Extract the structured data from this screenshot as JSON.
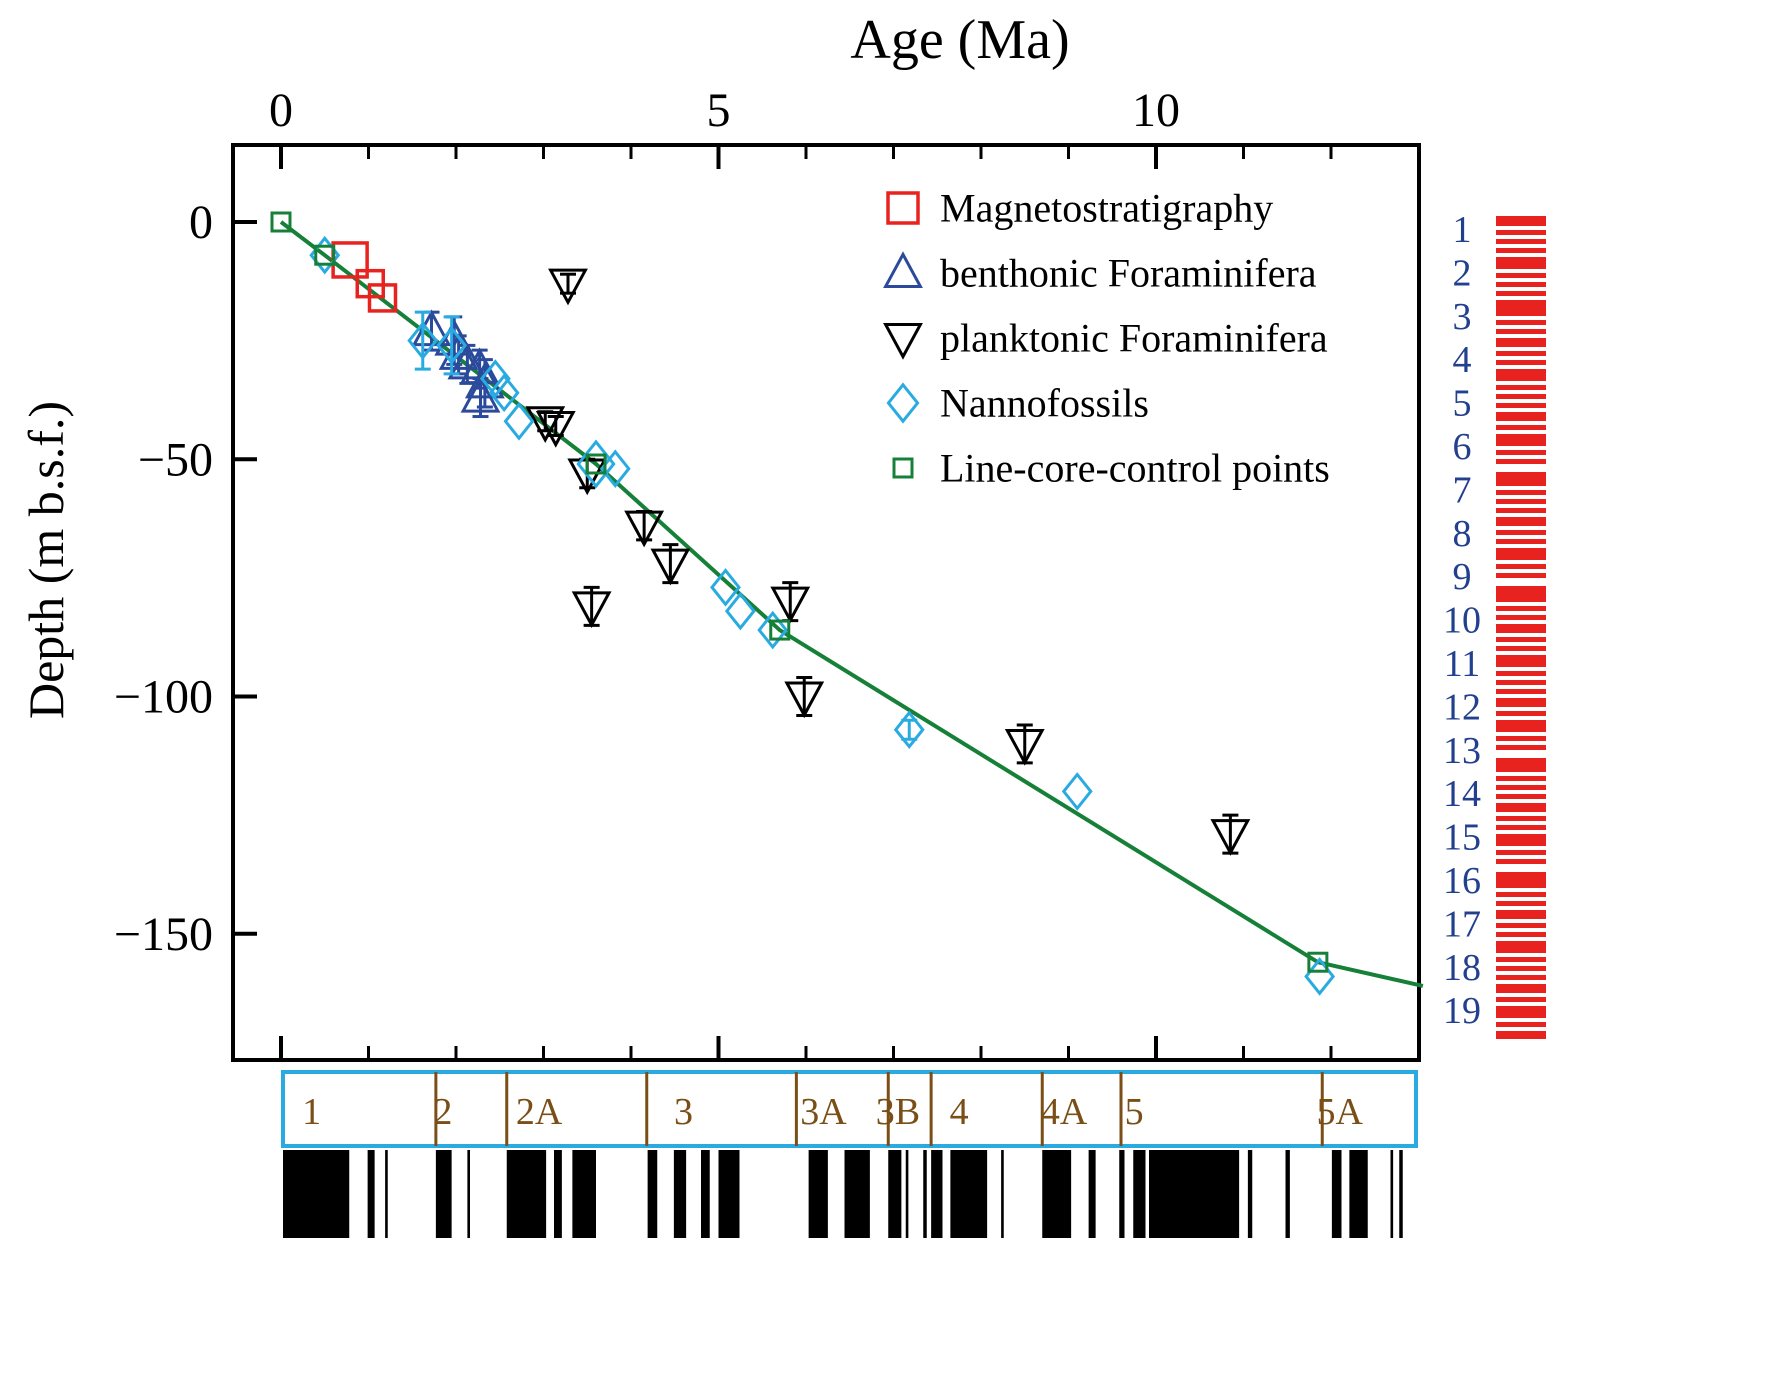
{
  "figure": {
    "title": "Age (Ma)",
    "ylabel": "Depth (m b.s.f.)"
  },
  "chart_data": {
    "type": "scatter",
    "xlabel": "Age (Ma)",
    "ylabel": "Depth (m b.s.f.)",
    "xlim": [
      0,
      13
    ],
    "ylim": [
      -176,
      16
    ],
    "x_major_ticks": [
      0,
      5,
      10
    ],
    "x_minor_ticks": [
      1,
      2,
      3,
      4,
      6,
      7,
      8,
      9,
      11,
      12
    ],
    "y_major_ticks": [
      0,
      -50,
      -100,
      -150
    ],
    "grid": false,
    "legend_position": "top-right-inside",
    "series": [
      {
        "name": "Magnetostratigraphy",
        "marker": "square",
        "color": "#e8231f",
        "stroke": 3.5,
        "size": 26,
        "points": [
          {
            "x": 0.79,
            "y": -8,
            "s": 34
          },
          {
            "x": 1.02,
            "y": -13
          },
          {
            "x": 1.16,
            "y": -16
          }
        ]
      },
      {
        "name": "benthonic Foraminifera",
        "marker": "triangle-up",
        "color": "#2b4a9c",
        "stroke": 3,
        "size": 30,
        "points": [
          {
            "x": 1.72,
            "y": -23,
            "e": 4
          },
          {
            "x": 1.98,
            "y": -25,
            "e": 5
          },
          {
            "x": 2.03,
            "y": -28,
            "e": 4
          },
          {
            "x": 2.13,
            "y": -30,
            "e": 4
          },
          {
            "x": 2.27,
            "y": -31,
            "e": 4
          },
          {
            "x": 2.33,
            "y": -34,
            "e": 5
          },
          {
            "x": 2.28,
            "y": -37,
            "e": 4
          }
        ]
      },
      {
        "name": "planktonic Foraminifera",
        "marker": "triangle-down",
        "color": "#000000",
        "stroke": 3,
        "size": 30,
        "points": [
          {
            "x": 3.28,
            "y": -13,
            "e": 2
          },
          {
            "x": 3.02,
            "y": -42,
            "e": 2
          },
          {
            "x": 3.14,
            "y": -43,
            "e": 2
          },
          {
            "x": 3.5,
            "y": -53,
            "e": 3
          },
          {
            "x": 4.15,
            "y": -64,
            "e": 3
          },
          {
            "x": 4.45,
            "y": -72,
            "e": 4
          },
          {
            "x": 3.55,
            "y": -81,
            "e": 4
          },
          {
            "x": 5.82,
            "y": -80,
            "e": 4
          },
          {
            "x": 5.98,
            "y": -100,
            "e": 4
          },
          {
            "x": 8.5,
            "y": -110,
            "e": 4
          },
          {
            "x": 10.85,
            "y": -129,
            "e": 4
          }
        ]
      },
      {
        "name": "Nannofossils",
        "marker": "diamond",
        "color": "#29abe2",
        "stroke": 3,
        "size": 26,
        "points": [
          {
            "x": 0.5,
            "y": -7
          },
          {
            "x": 1.62,
            "y": -25,
            "e": 6
          },
          {
            "x": 1.95,
            "y": -26,
            "e": 6
          },
          {
            "x": 2.45,
            "y": -33
          },
          {
            "x": 2.55,
            "y": -36
          },
          {
            "x": 2.72,
            "y": -42
          },
          {
            "x": 3.6,
            "y": -51,
            "s": 34
          },
          {
            "x": 3.82,
            "y": -52
          },
          {
            "x": 5.08,
            "y": -77
          },
          {
            "x": 5.25,
            "y": -82
          },
          {
            "x": 5.62,
            "y": -86
          },
          {
            "x": 7.18,
            "y": -107,
            "e": 2
          },
          {
            "x": 9.1,
            "y": -120
          },
          {
            "x": 11.87,
            "y": -159
          }
        ]
      },
      {
        "name": "Line-core-control points",
        "marker": "square",
        "color": "#168039",
        "stroke": 3,
        "size": 18,
        "points": [
          {
            "x": 0,
            "y": 0
          },
          {
            "x": 0.5,
            "y": -7
          },
          {
            "x": 3.6,
            "y": -51
          },
          {
            "x": 5.7,
            "y": -86
          },
          {
            "x": 11.85,
            "y": -156
          }
        ]
      }
    ],
    "line": {
      "name": "age-depth-model-line",
      "color": "#168039",
      "points": [
        [
          0,
          0
        ],
        [
          0.5,
          -7
        ],
        [
          3.6,
          -51
        ],
        [
          5.7,
          -86
        ],
        [
          11.85,
          -156
        ],
        [
          13.05,
          -161
        ]
      ]
    }
  },
  "legend": {
    "items": [
      {
        "label": "Magnetostratigraphy"
      },
      {
        "label": "benthonic Foraminifera"
      },
      {
        "label": "planktonic Foraminifera"
      },
      {
        "label": "Nannofossils"
      },
      {
        "label": "Line-core-control points"
      }
    ]
  },
  "core_log": {
    "numbers": [
      "1",
      "2",
      "3",
      "4",
      "5",
      "6",
      "7",
      "8",
      "9",
      "10",
      "11",
      "12",
      "13",
      "14",
      "15",
      "16",
      "17",
      "18",
      "19"
    ],
    "number_color": "#23408f",
    "stripe_color": "#e8231f",
    "stripes": [
      [
        2,
        10
      ],
      [
        16,
        5
      ],
      [
        25,
        5
      ],
      [
        34,
        5
      ],
      [
        43,
        12
      ],
      [
        59,
        5
      ],
      [
        68,
        5
      ],
      [
        77,
        5
      ],
      [
        86,
        16
      ],
      [
        106,
        5
      ],
      [
        115,
        5
      ],
      [
        124,
        9
      ],
      [
        137,
        5
      ],
      [
        146,
        5
      ],
      [
        155,
        12
      ],
      [
        171,
        5
      ],
      [
        180,
        5
      ],
      [
        189,
        5
      ],
      [
        198,
        9
      ],
      [
        211,
        5
      ],
      [
        220,
        12
      ],
      [
        236,
        5
      ],
      [
        245,
        5
      ],
      [
        258,
        14
      ],
      [
        276,
        5
      ],
      [
        285,
        5
      ],
      [
        294,
        5
      ],
      [
        303,
        9
      ],
      [
        316,
        5
      ],
      [
        325,
        5
      ],
      [
        334,
        12
      ],
      [
        350,
        5
      ],
      [
        359,
        5
      ],
      [
        372,
        16
      ],
      [
        392,
        5
      ],
      [
        401,
        5
      ],
      [
        410,
        9
      ],
      [
        423,
        5
      ],
      [
        432,
        5
      ],
      [
        441,
        12
      ],
      [
        457,
        5
      ],
      [
        466,
        5
      ],
      [
        475,
        5
      ],
      [
        484,
        9
      ],
      [
        497,
        5
      ],
      [
        506,
        12
      ],
      [
        522,
        5
      ],
      [
        531,
        5
      ],
      [
        544,
        14
      ],
      [
        562,
        5
      ],
      [
        571,
        5
      ],
      [
        580,
        5
      ],
      [
        589,
        9
      ],
      [
        602,
        5
      ],
      [
        611,
        5
      ],
      [
        620,
        12
      ],
      [
        636,
        5
      ],
      [
        645,
        5
      ],
      [
        658,
        16
      ],
      [
        678,
        5
      ],
      [
        687,
        5
      ],
      [
        696,
        9
      ],
      [
        709,
        5
      ],
      [
        718,
        5
      ],
      [
        727,
        12
      ],
      [
        743,
        5
      ],
      [
        752,
        5
      ],
      [
        761,
        5
      ],
      [
        770,
        9
      ],
      [
        783,
        5
      ],
      [
        792,
        12
      ],
      [
        808,
        5
      ],
      [
        817,
        8
      ]
    ]
  },
  "chron_bar": {
    "border_color": "#29abe2",
    "label_color": "#7a4f17",
    "boundaries": [
      1.77,
      2.58,
      4.18,
      5.89,
      6.94,
      7.43,
      8.7,
      9.6,
      11.9
    ],
    "labels": [
      {
        "text": "1",
        "age": 0.35
      },
      {
        "text": "2",
        "age": 1.85
      },
      {
        "text": "2A",
        "age": 2.95
      },
      {
        "text": "3",
        "age": 4.6
      },
      {
        "text": "3A",
        "age": 6.2
      },
      {
        "text": "3B",
        "age": 7.05
      },
      {
        "text": "4",
        "age": 7.75
      },
      {
        "text": "4A",
        "age": 8.95
      },
      {
        "text": "5",
        "age": 9.75
      },
      {
        "text": "5A",
        "age": 12.1
      }
    ]
  },
  "polarity": {
    "color": "#000000",
    "normal_intervals": [
      [
        0,
        0.78
      ],
      [
        0.99,
        1.07
      ],
      [
        1.19,
        1.22
      ],
      [
        1.77,
        1.95
      ],
      [
        2.13,
        2.16
      ],
      [
        2.58,
        3.03
      ],
      [
        3.12,
        3.21
      ],
      [
        3.33,
        3.6
      ],
      [
        4.19,
        4.3
      ],
      [
        4.49,
        4.63
      ],
      [
        4.8,
        4.9
      ],
      [
        5.0,
        5.24
      ],
      [
        6.03,
        6.25
      ],
      [
        6.44,
        6.73
      ],
      [
        6.94,
        7.09
      ],
      [
        7.14,
        7.17
      ],
      [
        7.34,
        7.38
      ],
      [
        7.43,
        7.56
      ],
      [
        7.65,
        8.07
      ],
      [
        8.23,
        8.26
      ],
      [
        8.7,
        9.03
      ],
      [
        9.23,
        9.31
      ],
      [
        9.58,
        9.64
      ],
      [
        9.74,
        9.88
      ],
      [
        9.92,
        10.95
      ],
      [
        11.05,
        11.1
      ],
      [
        11.48,
        11.53
      ],
      [
        12.01,
        12.12
      ],
      [
        12.21,
        12.42
      ],
      [
        12.68,
        12.71
      ],
      [
        12.78,
        12.82
      ]
    ]
  }
}
